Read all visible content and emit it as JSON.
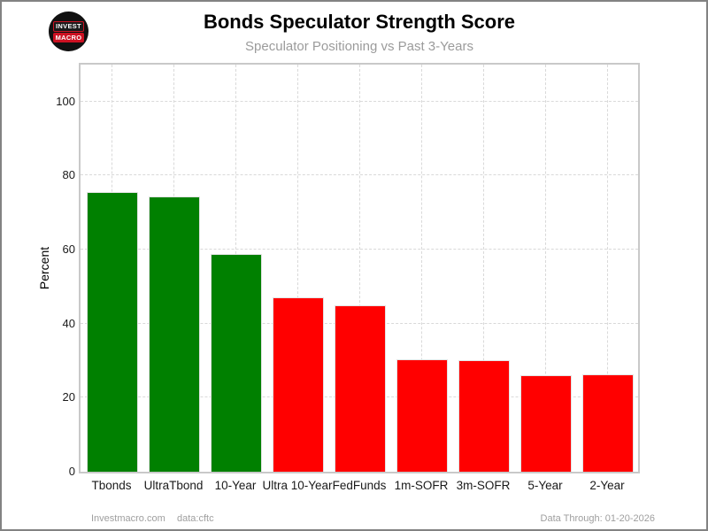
{
  "header": {
    "title": "Bonds Speculator Strength Score",
    "subtitle": "Speculator Positioning vs Past 3-Years",
    "logo": {
      "line1": "INVEST",
      "line2": "MACRO"
    }
  },
  "footer": {
    "site": "Investmacro.com",
    "source": "data:cftc",
    "data_through": "Data Through: 01-20-2026"
  },
  "chart_data": {
    "type": "bar",
    "title": "Bonds Speculator Strength Score",
    "subtitle": "Speculator Positioning vs Past 3-Years",
    "xlabel": "",
    "ylabel": "Percent",
    "ylim": [
      0,
      110
    ],
    "yticks": [
      0,
      20,
      40,
      60,
      80,
      100
    ],
    "grid": "dashed horizontal and vertical, light gray",
    "legend": "none",
    "categories": [
      "Tbonds",
      "UltraTbond",
      "10-Year",
      "Ultra 10-Year",
      "FedFunds",
      "1m-SOFR",
      "3m-SOFR",
      "5-Year",
      "2-Year"
    ],
    "values": [
      75.4,
      74.2,
      58.6,
      46.8,
      44.8,
      30.2,
      29.8,
      25.9,
      26.1
    ],
    "bar_colors": [
      "#008000",
      "#008000",
      "#008000",
      "#ff0000",
      "#ff0000",
      "#ff0000",
      "#ff0000",
      "#ff0000",
      "#ff0000"
    ]
  },
  "colors": {
    "bullish_green": "#008000",
    "bearish_red": "#ff0000",
    "grid": "#d9d9d9",
    "plot_border": "#c9c9c9",
    "subtitle_gray": "#9b9b9b",
    "footer_gray": "#9e9e9e",
    "frame_gray": "#828282",
    "logo_red": "#cc1122"
  }
}
